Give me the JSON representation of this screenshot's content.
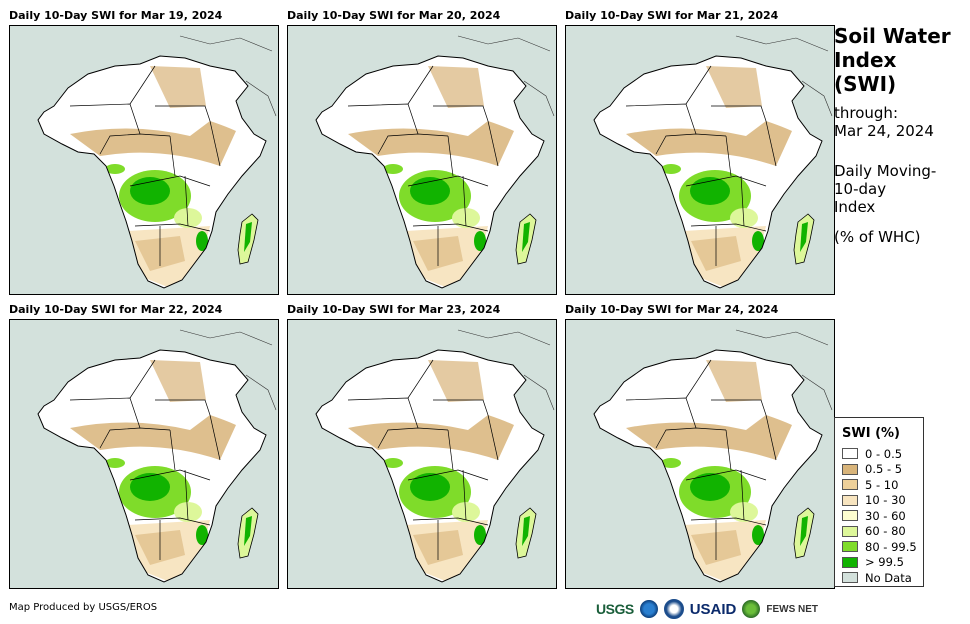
{
  "panels": [
    {
      "title": "Daily 10-Day SWI for Mar 19, 2024"
    },
    {
      "title": "Daily 10-Day SWI for Mar 20, 2024"
    },
    {
      "title": "Daily 10-Day SWI for Mar 21, 2024"
    },
    {
      "title": "Daily 10-Day SWI for Mar 22, 2024"
    },
    {
      "title": "Daily 10-Day SWI for Mar 23, 2024"
    },
    {
      "title": "Daily 10-Day SWI for Mar 24, 2024"
    }
  ],
  "sidebar": {
    "title_line1": "Soil Water",
    "title_line2": "Index",
    "title_line3": "(SWI)",
    "through_label": "through:",
    "through_date": "Mar 24, 2024",
    "desc_line1": "Daily Moving-",
    "desc_line2": "10-day",
    "desc_line3": "Index",
    "unit": "(% of WHC)"
  },
  "legend": {
    "title": "SWI (%)",
    "items": [
      {
        "label": "0 - 0.5",
        "color": "#ffffff"
      },
      {
        "label": "0.5 - 5",
        "color": "#d8b47a"
      },
      {
        "label": "5 - 10",
        "color": "#edd09a"
      },
      {
        "label": "10 - 30",
        "color": "#f7e4bf"
      },
      {
        "label": "30 - 60",
        "color": "#ffffd0"
      },
      {
        "label": "60 - 80",
        "color": "#ddf79a"
      },
      {
        "label": "80 - 99.5",
        "color": "#7fdc2a"
      },
      {
        "label": "> 99.5",
        "color": "#11b300"
      },
      {
        "label": "No Data",
        "color": "#d3e1dc"
      }
    ]
  },
  "footer": {
    "credit": "Map Produced by USGS/EROS",
    "logo_usgs": "USGS",
    "logo_usaid": "USAID",
    "logo_fews": "FEWS NET"
  },
  "colors": {
    "ocean": "#d3e1dc",
    "land_dry": "#ffffff",
    "sahel_tan": "#d8b47a",
    "light_tan": "#f7e4bf",
    "green_mid": "#7fdc2a",
    "green_dark": "#11b300",
    "green_light": "#ddf79a"
  }
}
